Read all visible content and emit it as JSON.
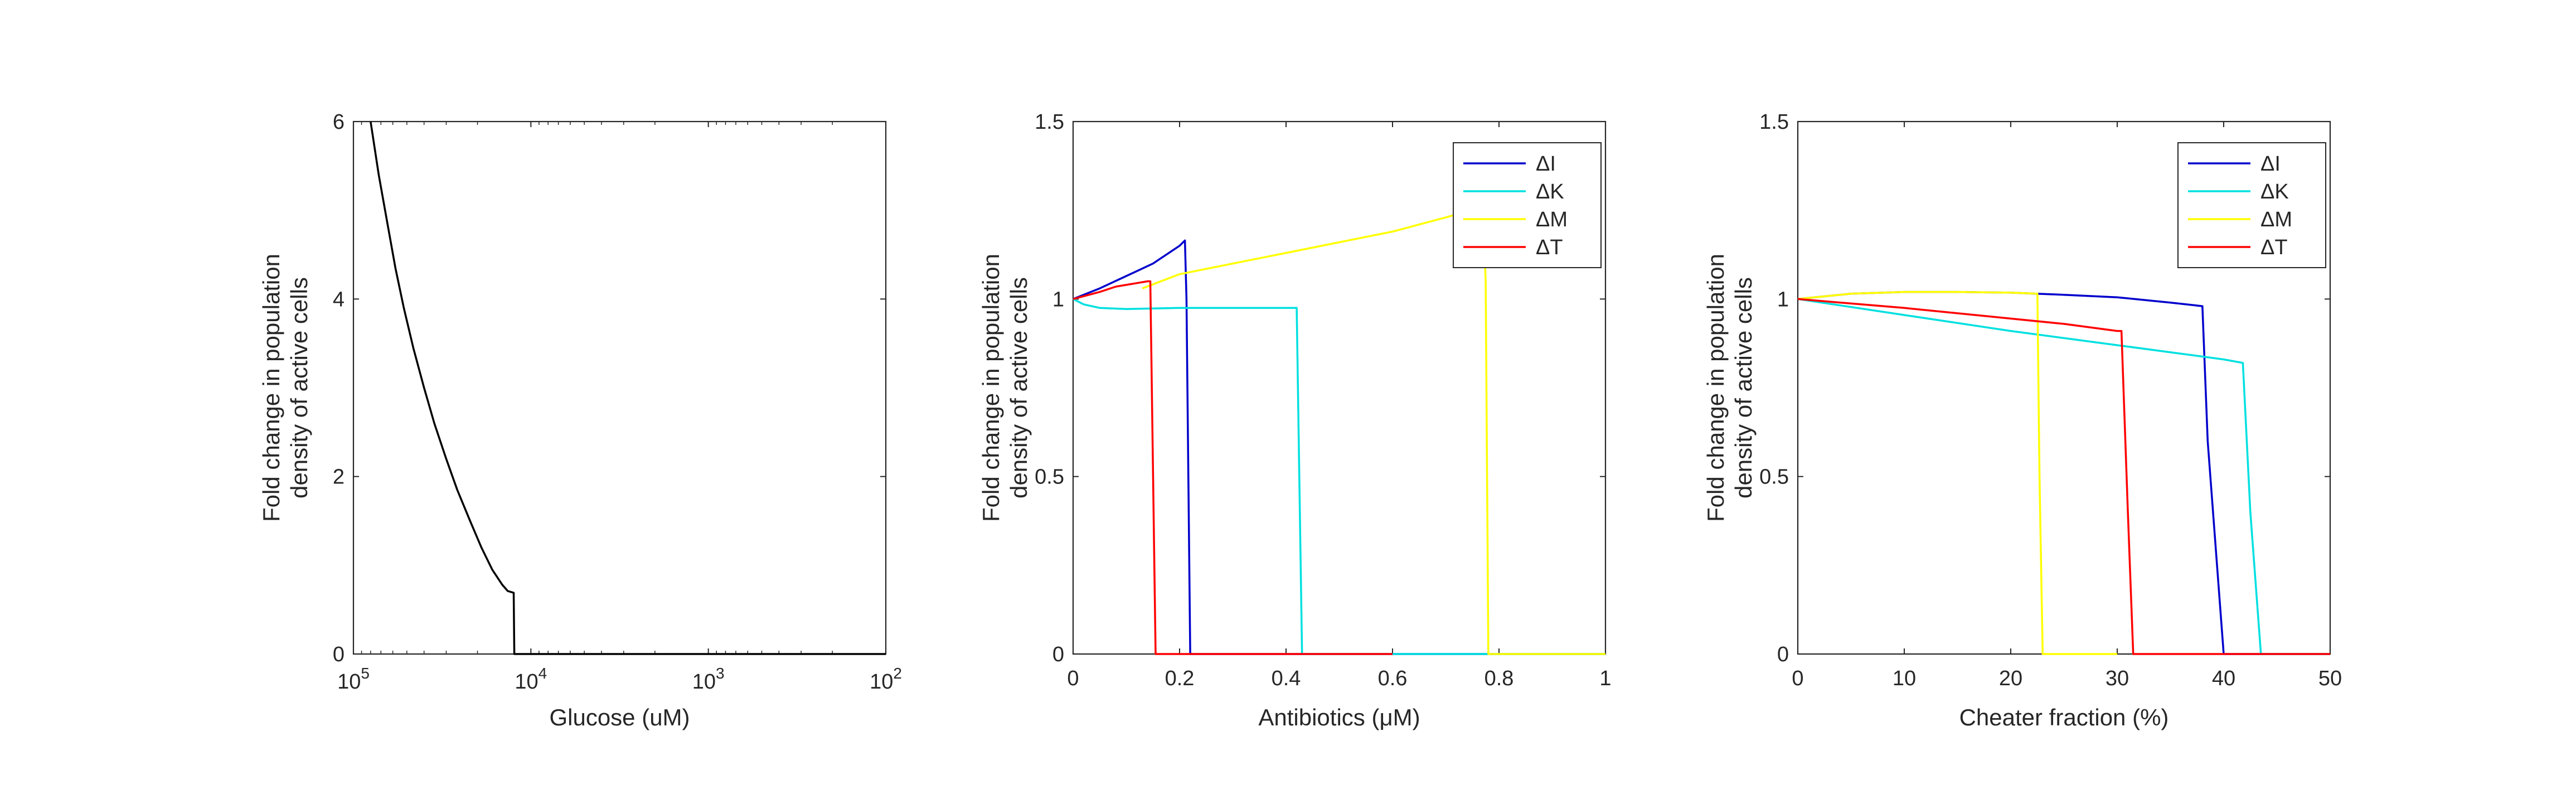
{
  "chart_data": [
    {
      "type": "line",
      "xscale": "log",
      "x_reversed": true,
      "xlim": [
        100,
        100000
      ],
      "ylim": [
        0,
        6
      ],
      "xticks": [
        100000,
        10000,
        1000,
        100
      ],
      "xtick_labels": [
        {
          "base": "10",
          "exp": "5"
        },
        {
          "base": "10",
          "exp": "4"
        },
        {
          "base": "10",
          "exp": "3"
        },
        {
          "base": "10",
          "exp": "2"
        }
      ],
      "yticks": [
        0,
        2,
        4,
        6
      ],
      "ytick_labels": [
        "0",
        "2",
        "4",
        "6"
      ],
      "xlabel": "Glucose (uM)",
      "ylabel": [
        "Fold change in population",
        "density of active cells"
      ],
      "series": [
        {
          "color": "#000000",
          "points": [
            [
              80000,
              6.0
            ],
            [
              72000,
              5.4
            ],
            [
              65000,
              4.9
            ],
            [
              58000,
              4.35
            ],
            [
              52000,
              3.9
            ],
            [
              46000,
              3.45
            ],
            [
              40000,
              3.0
            ],
            [
              35000,
              2.6
            ],
            [
              30000,
              2.2
            ],
            [
              26000,
              1.85
            ],
            [
              22000,
              1.5
            ],
            [
              19000,
              1.2
            ],
            [
              16500,
              0.95
            ],
            [
              14500,
              0.78
            ],
            [
              13500,
              0.71
            ],
            [
              12500,
              0.69
            ],
            [
              12400,
              0.0
            ],
            [
              100,
              0.0
            ]
          ]
        }
      ]
    },
    {
      "type": "line",
      "xlim": [
        0,
        1
      ],
      "ylim": [
        0,
        1.5
      ],
      "xticks": [
        0,
        0.2,
        0.4,
        0.6,
        0.8,
        1
      ],
      "xtick_labels": [
        "0",
        "0.2",
        "0.4",
        "0.6",
        "0.8",
        "1"
      ],
      "yticks": [
        0,
        0.5,
        1,
        1.5
      ],
      "ytick_labels": [
        "0",
        "0.5",
        "1",
        "1.5"
      ],
      "xlabel": "Antibiotics (μM)",
      "ylabel": [
        "Fold change in population",
        "density of active cells"
      ],
      "legend": "top-right",
      "series": [
        {
          "name": "ΔI",
          "color": "#0000cc",
          "points": [
            [
              0,
              1.0
            ],
            [
              0.05,
              1.03
            ],
            [
              0.1,
              1.065
            ],
            [
              0.15,
              1.1
            ],
            [
              0.2,
              1.15
            ],
            [
              0.21,
              1.165
            ],
            [
              0.213,
              1.0
            ],
            [
              0.22,
              0.0
            ],
            [
              1,
              0.0
            ]
          ]
        },
        {
          "name": "ΔK",
          "color": "#00e0e0",
          "points": [
            [
              0,
              1.0
            ],
            [
              0.02,
              0.985
            ],
            [
              0.05,
              0.975
            ],
            [
              0.1,
              0.972
            ],
            [
              0.2,
              0.975
            ],
            [
              0.3,
              0.975
            ],
            [
              0.42,
              0.975
            ],
            [
              0.43,
              0.0
            ],
            [
              1,
              0.0
            ]
          ]
        },
        {
          "name": "ΔM",
          "color": "#ffff00",
          "points": [
            [
              0.13,
              1.03
            ],
            [
              0.2,
              1.07
            ],
            [
              0.3,
              1.1
            ],
            [
              0.4,
              1.13
            ],
            [
              0.5,
              1.16
            ],
            [
              0.6,
              1.19
            ],
            [
              0.7,
              1.23
            ],
            [
              0.77,
              1.26
            ],
            [
              0.775,
              1.05
            ],
            [
              0.78,
              0.0
            ],
            [
              1,
              0.0
            ]
          ]
        },
        {
          "name": "ΔT",
          "color": "#ff0000",
          "points": [
            [
              0,
              1.0
            ],
            [
              0.05,
              1.02
            ],
            [
              0.08,
              1.035
            ],
            [
              0.1,
              1.04
            ],
            [
              0.12,
              1.045
            ],
            [
              0.14,
              1.05
            ],
            [
              0.145,
              1.05
            ],
            [
              0.155,
              0.0
            ],
            [
              0.6,
              0.0
            ]
          ]
        }
      ]
    },
    {
      "type": "line",
      "xlim": [
        0,
        50
      ],
      "ylim": [
        0,
        1.5
      ],
      "xticks": [
        0,
        10,
        20,
        30,
        40,
        50
      ],
      "xtick_labels": [
        "0",
        "10",
        "20",
        "30",
        "40",
        "50"
      ],
      "yticks": [
        0,
        0.5,
        1,
        1.5
      ],
      "ytick_labels": [
        "0",
        "0.5",
        "1",
        "1.5"
      ],
      "xlabel": "Cheater fraction (%)",
      "ylabel": [
        "Fold change in population",
        "density of active cells"
      ],
      "legend": "top-right",
      "series": [
        {
          "name": "ΔI",
          "color": "#0000cc",
          "points": [
            [
              0,
              1.0
            ],
            [
              5,
              1.015
            ],
            [
              10,
              1.02
            ],
            [
              15,
              1.02
            ],
            [
              20,
              1.018
            ],
            [
              25,
              1.012
            ],
            [
              30,
              1.005
            ],
            [
              35,
              0.99
            ],
            [
              38,
              0.98
            ],
            [
              38.5,
              0.6
            ],
            [
              40,
              0.0
            ],
            [
              50,
              0.0
            ]
          ]
        },
        {
          "name": "ΔK",
          "color": "#00e0e0",
          "points": [
            [
              0,
              1.0
            ],
            [
              10,
              0.955
            ],
            [
              20,
              0.91
            ],
            [
              30,
              0.87
            ],
            [
              40,
              0.83
            ],
            [
              41.8,
              0.82
            ],
            [
              42.5,
              0.4
            ],
            [
              43.5,
              0.0
            ],
            [
              50,
              0.0
            ]
          ]
        },
        {
          "name": "ΔM",
          "color": "#ffff00",
          "points": [
            [
              0,
              1.0
            ],
            [
              5,
              1.015
            ],
            [
              10,
              1.02
            ],
            [
              15,
              1.02
            ],
            [
              20,
              1.018
            ],
            [
              22.5,
              1.015
            ],
            [
              22.7,
              0.5
            ],
            [
              23,
              0.0
            ],
            [
              30,
              0.0
            ]
          ]
        },
        {
          "name": "ΔT",
          "color": "#ff0000",
          "points": [
            [
              0,
              1.0
            ],
            [
              10,
              0.975
            ],
            [
              20,
              0.945
            ],
            [
              25,
              0.93
            ],
            [
              30,
              0.91
            ],
            [
              30.4,
              0.91
            ],
            [
              31,
              0.4
            ],
            [
              31.5,
              0.0
            ],
            [
              50,
              0.0
            ]
          ]
        }
      ]
    }
  ]
}
